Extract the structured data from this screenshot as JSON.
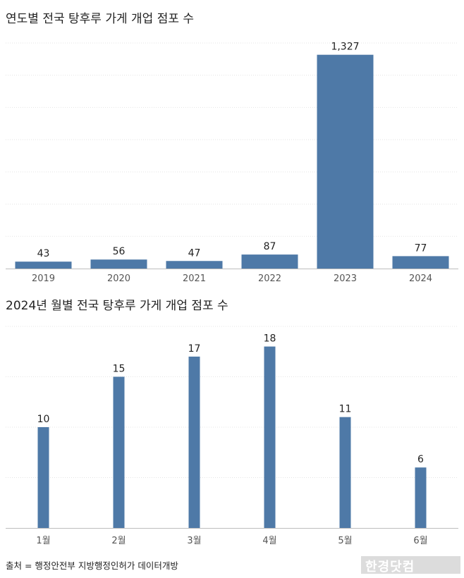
{
  "chart_data": [
    {
      "type": "bar",
      "title": "연도별 전국 탕후루 가게 개업 점포 수",
      "categories": [
        "2019",
        "2020",
        "2021",
        "2022",
        "2023",
        "2024"
      ],
      "values": [
        43,
        56,
        47,
        87,
        1327,
        77
      ],
      "value_labels": [
        "43",
        "56",
        "47",
        "87",
        "1,327",
        "77"
      ],
      "ylim": [
        0,
        1400
      ],
      "grid": true,
      "bar_color": "#4e79a7"
    },
    {
      "type": "bar",
      "title": "2024년 월별 전국 탕후루 가게 개업 점포 수",
      "categories": [
        "1월",
        "2월",
        "3월",
        "4월",
        "5월",
        "6월"
      ],
      "values": [
        10,
        15,
        17,
        18,
        11,
        6
      ],
      "value_labels": [
        "10",
        "15",
        "17",
        "18",
        "11",
        "6"
      ],
      "ylim": [
        0,
        20
      ],
      "grid": true,
      "bar_color": "#4e79a7"
    }
  ],
  "source": "출처 = 행정안전부 지방행정인허가 데이터개방",
  "logo_text": "한경닷컴"
}
